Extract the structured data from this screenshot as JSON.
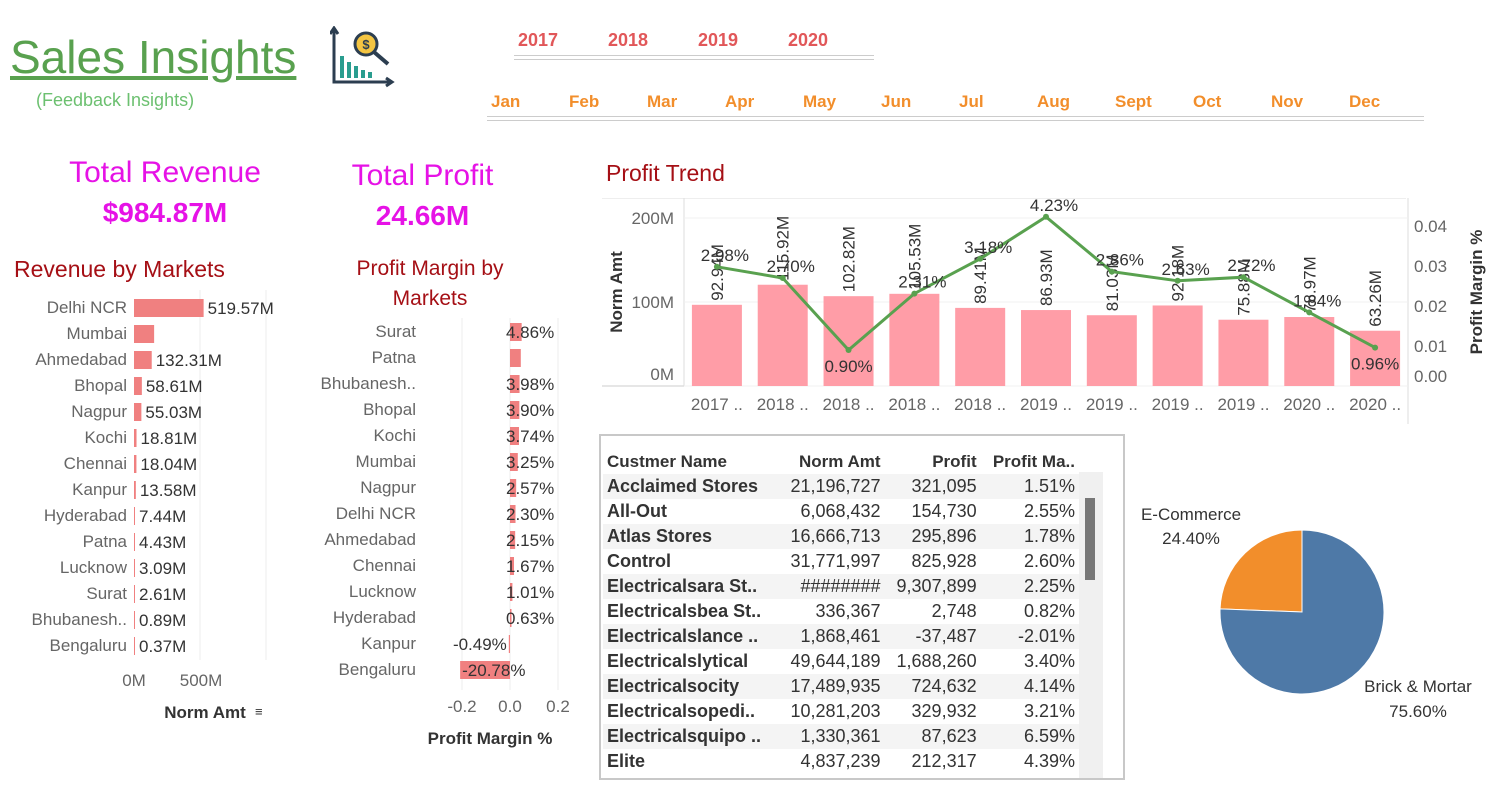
{
  "header": {
    "title": "Sales Insights",
    "subtitle": "(Feedback Insights)",
    "logo_icon": "bar-chart-magnifier-icon",
    "years": [
      "2017",
      "2018",
      "2019",
      "2020"
    ],
    "months": [
      "Jan",
      "Feb",
      "Mar",
      "Apr",
      "May",
      "Jun",
      "Jul",
      "Aug",
      "Sept",
      "Oct",
      "Nov",
      "Dec"
    ]
  },
  "kpis": {
    "revenue_label": "Total Revenue",
    "revenue_value": "$984.87M",
    "profit_label": "Total Profit",
    "profit_value": "24.66M"
  },
  "colors": {
    "title_green": "#59a14f",
    "kpi_magenta": "#e612e6",
    "section_red": "#a50f15",
    "year_red": "#e15759",
    "month_orange": "#f28e2b",
    "bar_salmon": "#f08080",
    "trend_bar": "#ff9da7",
    "trend_line": "#59a14f",
    "pie_blue": "#4e79a7",
    "pie_orange": "#f28e2b"
  },
  "chart_data": [
    {
      "id": "revenue_by_markets",
      "type": "bar",
      "title": "Revenue by Markets",
      "xlabel": "Norm Amt",
      "xticks": [
        "0M",
        "500M"
      ],
      "xlim": [
        0,
        1000
      ],
      "categories": [
        "Delhi NCR",
        "Mumbai",
        "Ahmedabad",
        "Bhopal",
        "Nagpur",
        "Kochi",
        "Chennai",
        "Kanpur",
        "Hyderabad",
        "Patna",
        "Lucknow",
        "Surat",
        "Bhubanesh..",
        "Bengaluru"
      ],
      "values": [
        519.57,
        150.18,
        132.31,
        58.61,
        55.03,
        18.81,
        18.04,
        13.58,
        7.44,
        4.43,
        3.09,
        2.61,
        0.89,
        0.37
      ],
      "labels": [
        "519.57M",
        "",
        "132.31M",
        "58.61M",
        "55.03M",
        "18.81M",
        "18.04M",
        "13.58M",
        "7.44M",
        "4.43M",
        "3.09M",
        "2.61M",
        "0.89M",
        "0.37M"
      ]
    },
    {
      "id": "profit_margin_by_markets",
      "type": "bar",
      "title": "Profit Margin by Markets",
      "xlabel": "Profit Margin %",
      "xticks": [
        "-0.2",
        "0.0",
        "0.2"
      ],
      "xlim": [
        -0.3,
        0.3
      ],
      "categories": [
        "Surat",
        "Patna",
        "Bhubanesh..",
        "Bhopal",
        "Kochi",
        "Mumbai",
        "Nagpur",
        "Delhi NCR",
        "Ahmedabad",
        "Chennai",
        "Lucknow",
        "Hyderabad",
        "Kanpur",
        "Bengaluru"
      ],
      "values": [
        0.0486,
        0.045,
        0.0398,
        0.039,
        0.0374,
        0.0325,
        0.0257,
        0.023,
        0.0215,
        0.0167,
        0.0101,
        0.0063,
        -0.0049,
        -0.2078
      ],
      "labels": [
        "4.86%",
        "",
        "3.98%",
        "3.90%",
        "3.74%",
        "3.25%",
        "2.57%",
        "2.30%",
        "2.15%",
        "1.67%",
        "1.01%",
        "0.63%",
        "-0.49%",
        "-20.78%"
      ]
    },
    {
      "id": "profit_trend",
      "type": "bar",
      "title": "Profit Trend",
      "ylabel": "Norm Amt",
      "y2label": "Profit Margin %",
      "yticks": [
        "0M",
        "100M",
        "200M"
      ],
      "ylim": [
        0,
        200
      ],
      "y2ticks": [
        "0.00",
        "0.01",
        "0.02",
        "0.03",
        "0.04"
      ],
      "y2lim": [
        0,
        0.04
      ],
      "categories": [
        "2017 ..",
        "2018 ..",
        "2018 ..",
        "2018 ..",
        "2018 ..",
        "2019 ..",
        "2019 ..",
        "2019 ..",
        "2019 ..",
        "2020 ..",
        "2020 .."
      ],
      "series": [
        {
          "name": "Norm Amt",
          "type": "bar",
          "values": [
            92.94,
            115.92,
            102.82,
            105.53,
            89.41,
            86.93,
            81.03,
            92.18,
            75.88,
            78.97,
            63.26
          ],
          "labels": [
            "92.94M",
            "115.92M",
            "102.82M",
            "105.53M",
            "89.41M",
            "86.93M",
            "81.03M",
            "92.18M",
            "75.88M",
            "78.97M",
            "63.26M"
          ]
        },
        {
          "name": "Profit Margin %",
          "type": "line",
          "values": [
            0.0298,
            0.027,
            0.009,
            0.0231,
            0.0318,
            0.0423,
            0.0286,
            0.0263,
            0.0272,
            0.0184,
            0.0096
          ],
          "labels": [
            "2.98%",
            "2.70%",
            "0.90%",
            "2.31%",
            "3.18%",
            "4.23%",
            "2.86%",
            "2.63%",
            "2.72%",
            "1.84%",
            "0.96%"
          ]
        }
      ]
    },
    {
      "id": "customer_table",
      "type": "table",
      "columns": [
        "Custmer Name",
        "Norm Amt",
        "Profit",
        "Profit Ma.."
      ],
      "rows": [
        [
          "Acclaimed Stores",
          "21,196,727",
          "321,095",
          "1.51%"
        ],
        [
          "All-Out",
          "6,068,432",
          "154,730",
          "2.55%"
        ],
        [
          "Atlas Stores",
          "16,666,713",
          "295,896",
          "1.78%"
        ],
        [
          "Control",
          "31,771,997",
          "825,928",
          "2.60%"
        ],
        [
          "Electricalsara St..",
          "########",
          "9,307,899",
          "2.25%"
        ],
        [
          "Electricalsbea St..",
          "336,367",
          "2,748",
          "0.82%"
        ],
        [
          "Electricalslance ..",
          "1,868,461",
          "-37,487",
          "-2.01%"
        ],
        [
          "Electricalslytical",
          "49,644,189",
          "1,688,260",
          "3.40%"
        ],
        [
          "Electricalsocity",
          "17,489,935",
          "724,632",
          "4.14%"
        ],
        [
          "Electricalsopedi..",
          "10,281,203",
          "329,932",
          "3.21%"
        ],
        [
          "Electricalsquipo ..",
          "1,330,361",
          "87,623",
          "6.59%"
        ],
        [
          "Elite",
          "4,837,239",
          "212,317",
          "4.39%"
        ]
      ]
    },
    {
      "id": "channel_pie",
      "type": "pie",
      "slices": [
        {
          "name": "Brick & Mortar",
          "value": 75.6,
          "label": "75.60%",
          "color": "#4e79a7"
        },
        {
          "name": "E-Commerce",
          "value": 24.4,
          "label": "24.40%",
          "color": "#f28e2b"
        }
      ]
    }
  ]
}
